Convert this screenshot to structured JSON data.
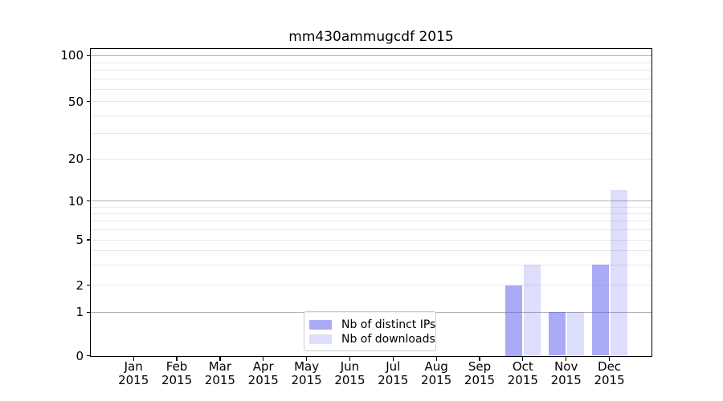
{
  "figure": {
    "title": "mm430ammugcdf 2015"
  },
  "y_axis": {
    "tick_labels": [
      "0",
      "1",
      "2",
      "5",
      "10",
      "20",
      "50",
      "100"
    ],
    "tick_values": [
      0,
      1,
      2,
      5,
      10,
      20,
      50,
      100
    ],
    "minor_gridline_values": [
      2,
      3,
      4,
      5,
      6,
      7,
      8,
      9,
      20,
      30,
      40,
      50,
      60,
      70,
      80,
      90
    ],
    "major_gridline_values": [
      1,
      10,
      100
    ]
  },
  "x_axis": {
    "months": [
      "Jan",
      "Feb",
      "Mar",
      "Apr",
      "May",
      "Jun",
      "Jul",
      "Aug",
      "Sep",
      "Oct",
      "Nov",
      "Dec"
    ],
    "year": "2015"
  },
  "legend": {
    "items": [
      {
        "label": "Nb of distinct IPs",
        "color": "rgba(85,85,238,0.5)"
      },
      {
        "label": "Nb of downloads",
        "color": "rgba(85,85,238,0.2)"
      }
    ]
  },
  "chart_data": {
    "type": "bar",
    "title": "mm430ammugcdf 2015",
    "categories": [
      "Jan 2015",
      "Feb 2015",
      "Mar 2015",
      "Apr 2015",
      "May 2015",
      "Jun 2015",
      "Jul 2015",
      "Aug 2015",
      "Sep 2015",
      "Oct 2015",
      "Nov 2015",
      "Dec 2015"
    ],
    "series": [
      {
        "name": "Nb of distinct IPs",
        "color": "rgba(85,85,238,0.5)",
        "values": [
          0,
          0,
          0,
          0,
          0,
          0,
          0,
          0,
          0,
          2,
          1,
          3
        ]
      },
      {
        "name": "Nb of downloads",
        "color": "rgba(85,85,238,0.2)",
        "values": [
          0,
          0,
          0,
          0,
          0,
          0,
          0,
          0,
          0,
          3,
          1,
          12
        ]
      }
    ],
    "yscale": "symlog-like (linear 0-1, log above)",
    "y_ticks": [
      0,
      1,
      2,
      5,
      10,
      20,
      50,
      100
    ],
    "ylim": [
      0,
      112
    ],
    "grid": true,
    "legend_position": "lower center inside plot"
  },
  "colors": {
    "background": "#ffffff",
    "bar_base": "#5555ee",
    "grid_minor": "#e8e8e8",
    "grid_major": "#b0b0b0",
    "spine": "#000000",
    "text": "#000000",
    "legend_border": "#cccccc"
  }
}
